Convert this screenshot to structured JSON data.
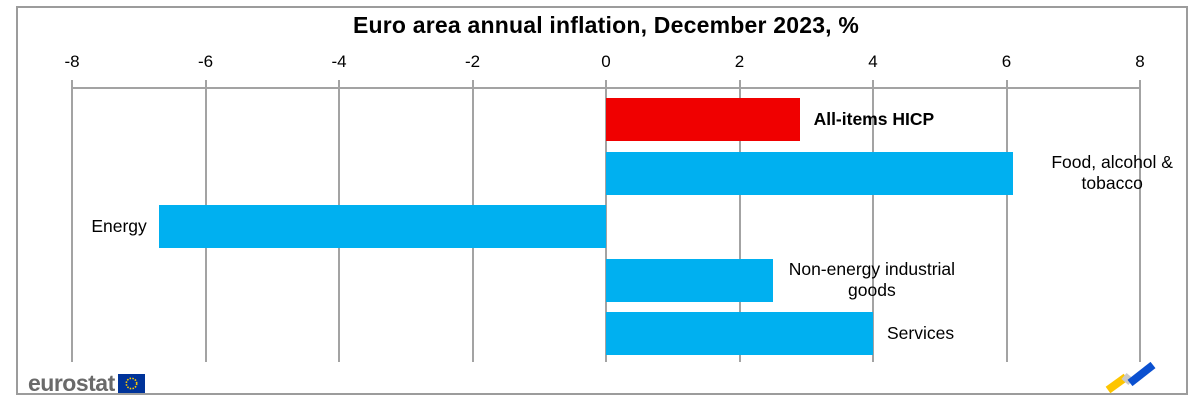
{
  "chart_data": {
    "type": "bar",
    "orientation": "horizontal",
    "title": "Euro area annual inflation, December 2023, %",
    "xlabel": "",
    "ylabel": "",
    "axis": {
      "min": -8,
      "max": 8,
      "ticks": [
        -8,
        -6,
        -4,
        -2,
        0,
        2,
        4,
        6,
        8
      ],
      "position": "top",
      "grid": true
    },
    "items": [
      {
        "name": "all-items-hicp",
        "label_lines": [
          "All-items HICP"
        ],
        "value": 2.9,
        "color": "#f00000",
        "bold": true
      },
      {
        "name": "food-alcohol-tobacco",
        "label_lines": [
          "Food, alcohol &",
          "tobacco"
        ],
        "value": 6.1,
        "color": "#00b0f0",
        "bold": false
      },
      {
        "name": "energy",
        "label_lines": [
          "Energy"
        ],
        "value": -6.7,
        "color": "#00b0f0",
        "bold": false
      },
      {
        "name": "non-energy-industrial-goods",
        "label_lines": [
          "Non-energy industrial",
          "goods"
        ],
        "value": 2.5,
        "color": "#00b0f0",
        "bold": false
      },
      {
        "name": "services",
        "label_lines": [
          "Services"
        ],
        "value": 4.0,
        "color": "#00b0f0",
        "bold": false
      }
    ],
    "colors": {
      "highlight_bar": "#f00000",
      "default_bar": "#00b0f0",
      "gridline": "#a3a3a3"
    }
  },
  "footer": {
    "brand": "eurostat",
    "eu_flag": {
      "background": "#003399",
      "stars": "#ffcc00"
    },
    "trend_logo": {
      "yellow": "#fdc500",
      "gray": "#c9c9c9",
      "blue": "#0b50d0"
    }
  }
}
